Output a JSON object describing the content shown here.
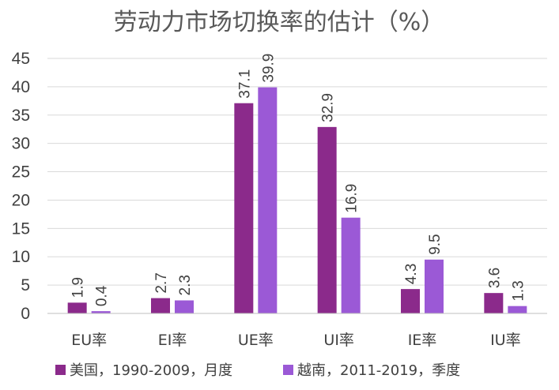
{
  "chart_data": {
    "type": "bar",
    "title": "劳动力市场切换率的估计（%）",
    "categories": [
      "EU率",
      "EI率",
      "UE率",
      "UI率",
      "IE率",
      "IU率"
    ],
    "series": [
      {
        "name": "美国，1990-2009，月度",
        "color": "#8b2a8b",
        "values": [
          1.9,
          2.7,
          37.1,
          32.9,
          4.3,
          3.6
        ]
      },
      {
        "name": "越南，2011-2019，季度",
        "color": "#9b59d6",
        "values": [
          0.4,
          2.3,
          39.9,
          16.9,
          9.5,
          1.3
        ]
      }
    ],
    "yticks": [
      0,
      5,
      10,
      15,
      20,
      25,
      30,
      35,
      40,
      45
    ],
    "ylim": [
      0,
      45
    ],
    "grid": true,
    "legend_position": "bottom"
  }
}
